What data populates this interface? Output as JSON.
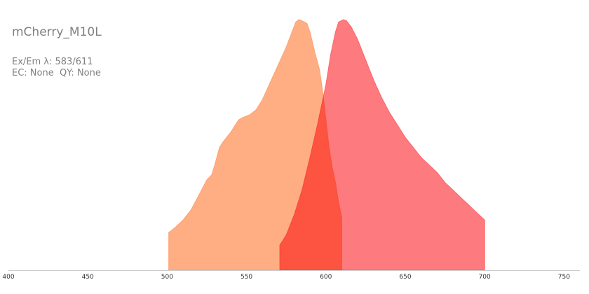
{
  "chart_data": {
    "type": "area",
    "title": "mCherry_M10L",
    "info_line1": "Ex/Em λ: 583/611",
    "info_line2": "EC: None  QY: None",
    "xlim": [
      400,
      760
    ],
    "ylim": [
      0,
      1
    ],
    "x_ticks": [
      400,
      450,
      500,
      550,
      600,
      650,
      700,
      750
    ],
    "grid": false,
    "series": [
      {
        "key": "ex",
        "color": "#ffa06e",
        "x": [
          501,
          505,
          510,
          515,
          520,
          525,
          528,
          530,
          533,
          535,
          540,
          545,
          548,
          552,
          556,
          560,
          565,
          570,
          575,
          578,
          581,
          583,
          585,
          588,
          590,
          593,
          596,
          598,
          600,
          602,
          604,
          606,
          608,
          610
        ],
        "y": [
          0.15,
          0.17,
          0.2,
          0.24,
          0.3,
          0.36,
          0.38,
          0.42,
          0.49,
          0.51,
          0.55,
          0.6,
          0.61,
          0.62,
          0.64,
          0.68,
          0.75,
          0.82,
          0.89,
          0.94,
          0.99,
          1.0,
          0.995,
          0.985,
          0.95,
          0.87,
          0.8,
          0.71,
          0.6,
          0.49,
          0.41,
          0.35,
          0.27,
          0.21
        ]
      },
      {
        "key": "em",
        "color": "#fd6467",
        "x": [
          571,
          575,
          580,
          585,
          590,
          595,
          600,
          603,
          606,
          608,
          611,
          613,
          616,
          620,
          625,
          630,
          635,
          640,
          645,
          650,
          655,
          660,
          665,
          670,
          675,
          680,
          685,
          690,
          695,
          700
        ],
        "y": [
          0.1,
          0.14,
          0.22,
          0.32,
          0.45,
          0.59,
          0.74,
          0.86,
          0.95,
          0.99,
          1.0,
          0.995,
          0.97,
          0.92,
          0.84,
          0.76,
          0.69,
          0.63,
          0.58,
          0.53,
          0.49,
          0.45,
          0.42,
          0.39,
          0.35,
          0.32,
          0.29,
          0.26,
          0.23,
          0.2
        ]
      }
    ]
  }
}
